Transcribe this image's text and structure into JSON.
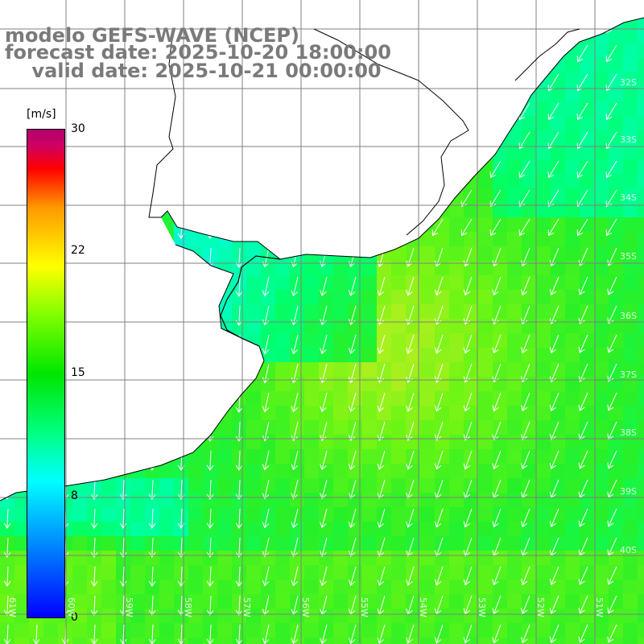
{
  "title": {
    "line1": "modelo GEFS-WAVE (NCEP)",
    "line2": "forecast date: 2025-10-20 18:00:00",
    "line3": "    valid date: 2025-10-21 00:00:00"
  },
  "colorbar": {
    "unit": "[m/s]",
    "tick_labels": [
      "30",
      "22",
      "15",
      "8",
      "0"
    ],
    "min": 0,
    "max": 30,
    "colors": [
      "#0000ff",
      "#0080ff",
      "#00ffff",
      "#00ff80",
      "#00e600",
      "#80ff00",
      "#ffff00",
      "#ff9900",
      "#ff0000",
      "#b0006e"
    ]
  },
  "map": {
    "longitude_labels": [
      "61W",
      "60W",
      "59W",
      "58W",
      "57W",
      "56W",
      "55W",
      "54W",
      "53W",
      "52W",
      "51W"
    ],
    "latitude_labels": [
      "32S",
      "33S",
      "34S",
      "35S",
      "36S",
      "37S",
      "38S",
      "39S",
      "40S"
    ],
    "field": "wind speed",
    "wind_direction": "from north / northeast (arrows pointing south / southwest)",
    "land_color": "#ffffff",
    "coastline_color": "#000000",
    "grid_color": "#808080",
    "arrow_color": "#ffffff"
  }
}
